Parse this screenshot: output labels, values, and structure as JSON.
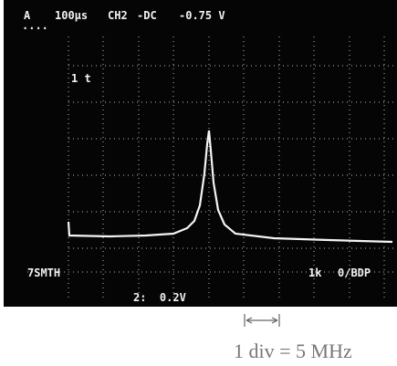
{
  "screen": {
    "channel": "A",
    "timebase": "100μs",
    "source": "CH2",
    "coupling": "-DC",
    "level": "-0.75 V",
    "trigger_marker": "1 t",
    "mode": "7SMTH",
    "record": "1k",
    "acquire": "0/BDP",
    "scale": "2:  0.2V"
  },
  "caption": "1 div = 5 MHz"
}
